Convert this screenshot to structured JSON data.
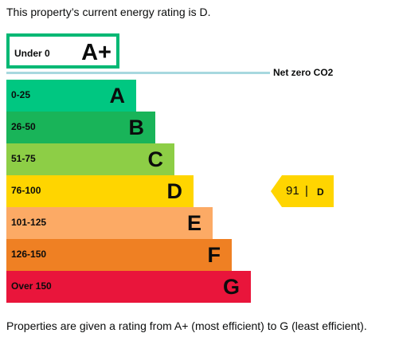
{
  "intro_text": "This property’s current energy rating is D.",
  "top_band": {
    "range": "Under 0",
    "letter": "A+",
    "border_color": "#00b874"
  },
  "net_zero_label": "Net zero CO2",
  "bands": [
    {
      "range": "0-25",
      "letter": "A",
      "color": "#00c781"
    },
    {
      "range": "26-50",
      "letter": "B",
      "color": "#19b459"
    },
    {
      "range": "51-75",
      "letter": "C",
      "color": "#8dce46"
    },
    {
      "range": "76-100",
      "letter": "D",
      "color": "#ffd500"
    },
    {
      "range": "101-125",
      "letter": "E",
      "color": "#fcaa65"
    },
    {
      "range": "126-150",
      "letter": "F",
      "color": "#ef8023"
    },
    {
      "range": "Over 150",
      "letter": "G",
      "color": "#e9153b"
    }
  ],
  "current_rating": {
    "score": "91",
    "separator": "|",
    "letter": "D",
    "color": "#ffd500"
  },
  "footer_text": "Properties are given a rating from A+ (most efficient) to G (least efficient)."
}
